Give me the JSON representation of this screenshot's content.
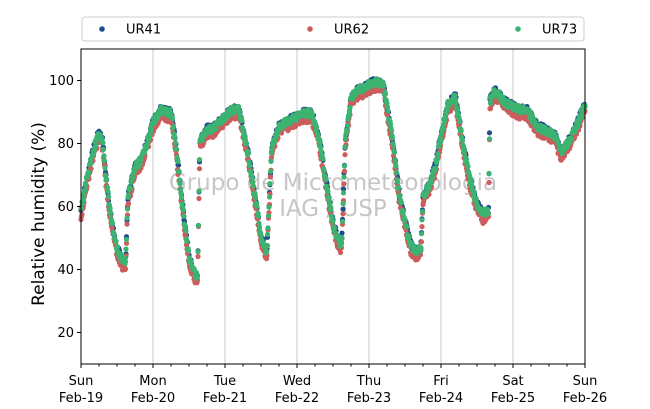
{
  "chart_data": {
    "type": "scatter",
    "ylabel": "Relative humidity (%)",
    "ylim": [
      10,
      110
    ],
    "yticks": [
      20,
      40,
      60,
      80,
      100
    ],
    "xlim_days": [
      0,
      7
    ],
    "xticks": [
      {
        "day": "Sun",
        "date": "Feb-19"
      },
      {
        "day": "Mon",
        "date": "Feb-20"
      },
      {
        "day": "Tue",
        "date": "Feb-21"
      },
      {
        "day": "Wed",
        "date": "Feb-22"
      },
      {
        "day": "Thu",
        "date": "Feb-23"
      },
      {
        "day": "Fri",
        "date": "Feb-24"
      },
      {
        "day": "Sat",
        "date": "Feb-25"
      },
      {
        "day": "Sun",
        "date": "Feb-26"
      }
    ],
    "grid": "vertical",
    "legend_position": "top",
    "watermark": [
      "Grupo de Micrometeorologia",
      "IAG / USP"
    ],
    "series": [
      {
        "name": "UR41",
        "color": "#1f4e8c",
        "offset": 0.8
      },
      {
        "name": "UR62",
        "color": "#cd5c5c",
        "offset": -1.2
      },
      {
        "name": "UR73",
        "color": "#3cb371",
        "offset": 0.6
      }
    ],
    "base_curve_day_hum": [
      [
        0.0,
        58
      ],
      [
        0.08,
        68
      ],
      [
        0.17,
        77
      ],
      [
        0.25,
        83
      ],
      [
        0.3,
        80
      ],
      [
        0.35,
        68
      ],
      [
        0.42,
        55
      ],
      [
        0.5,
        46
      ],
      [
        0.58,
        42
      ],
      [
        0.62,
        42
      ],
      [
        0.65,
        62
      ],
      [
        0.75,
        72
      ],
      [
        0.83,
        74
      ],
      [
        0.92,
        80
      ],
      [
        1.0,
        86
      ],
      [
        1.1,
        90
      ],
      [
        1.25,
        89
      ],
      [
        1.3,
        82
      ],
      [
        1.42,
        58
      ],
      [
        1.5,
        43
      ],
      [
        1.58,
        38
      ],
      [
        1.62,
        37
      ],
      [
        1.65,
        80
      ],
      [
        1.75,
        84
      ],
      [
        1.83,
        84
      ],
      [
        1.92,
        86
      ],
      [
        2.0,
        88
      ],
      [
        2.1,
        90
      ],
      [
        2.2,
        90
      ],
      [
        2.33,
        75
      ],
      [
        2.42,
        62
      ],
      [
        2.5,
        50
      ],
      [
        2.58,
        45
      ],
      [
        2.65,
        78
      ],
      [
        2.75,
        85
      ],
      [
        2.83,
        86
      ],
      [
        2.92,
        87
      ],
      [
        3.0,
        88
      ],
      [
        3.1,
        89
      ],
      [
        3.2,
        89
      ],
      [
        3.3,
        82
      ],
      [
        3.42,
        65
      ],
      [
        3.5,
        54
      ],
      [
        3.58,
        48
      ],
      [
        3.62,
        47
      ],
      [
        3.67,
        80
      ],
      [
        3.75,
        94
      ],
      [
        3.83,
        96
      ],
      [
        3.92,
        97
      ],
      [
        4.0,
        98
      ],
      [
        4.1,
        99
      ],
      [
        4.2,
        98
      ],
      [
        4.33,
        80
      ],
      [
        4.42,
        63
      ],
      [
        4.5,
        55
      ],
      [
        4.58,
        47
      ],
      [
        4.66,
        45
      ],
      [
        4.72,
        46
      ],
      [
        4.75,
        62
      ],
      [
        4.83,
        66
      ],
      [
        4.92,
        72
      ],
      [
        5.0,
        82
      ],
      [
        5.1,
        92
      ],
      [
        5.2,
        94
      ],
      [
        5.3,
        80
      ],
      [
        5.4,
        68
      ],
      [
        5.5,
        60
      ],
      [
        5.58,
        57
      ],
      [
        5.66,
        58
      ],
      [
        5.68,
        93
      ],
      [
        5.75,
        96
      ],
      [
        5.83,
        94
      ],
      [
        5.92,
        92
      ],
      [
        6.0,
        91
      ],
      [
        6.1,
        90
      ],
      [
        6.2,
        90
      ],
      [
        6.33,
        85
      ],
      [
        6.42,
        84
      ],
      [
        6.5,
        83
      ],
      [
        6.58,
        82
      ],
      [
        6.66,
        77
      ],
      [
        6.72,
        78
      ],
      [
        6.8,
        81
      ],
      [
        6.9,
        86
      ],
      [
        7.0,
        92
      ]
    ]
  }
}
